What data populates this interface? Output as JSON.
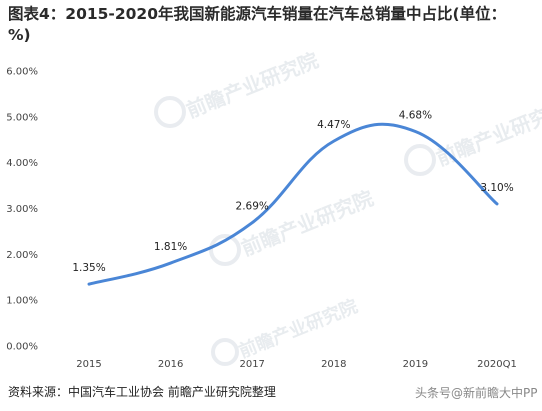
{
  "chart_data": {
    "type": "line",
    "title": "图表4：2015-2020年我国新能源汽车销量在汽车总销量中占比(单位：%)",
    "categories": [
      "2015",
      "2016",
      "2017",
      "2018",
      "2019",
      "2020Q1"
    ],
    "series": [
      {
        "values": [
          1.35,
          1.81,
          2.69,
          4.47,
          4.68,
          3.1
        ],
        "data_labels": [
          "1.35%",
          "1.81%",
          "2.69%",
          "4.47%",
          "4.68%",
          "3.10%"
        ],
        "color": "#4a86d6"
      }
    ],
    "y_ticks": [
      "0.00%",
      "1.00%",
      "2.00%",
      "3.00%",
      "4.00%",
      "5.00%",
      "6.00%"
    ],
    "ylim": [
      0,
      6
    ],
    "grid": false,
    "line_style": "smooth"
  },
  "source_text": "资料来源：中国汽车工业协会 前瞻产业研究院整理",
  "watermarks": [
    "前瞻产业研究院",
    "头条号@新前瞻大中PP"
  ]
}
